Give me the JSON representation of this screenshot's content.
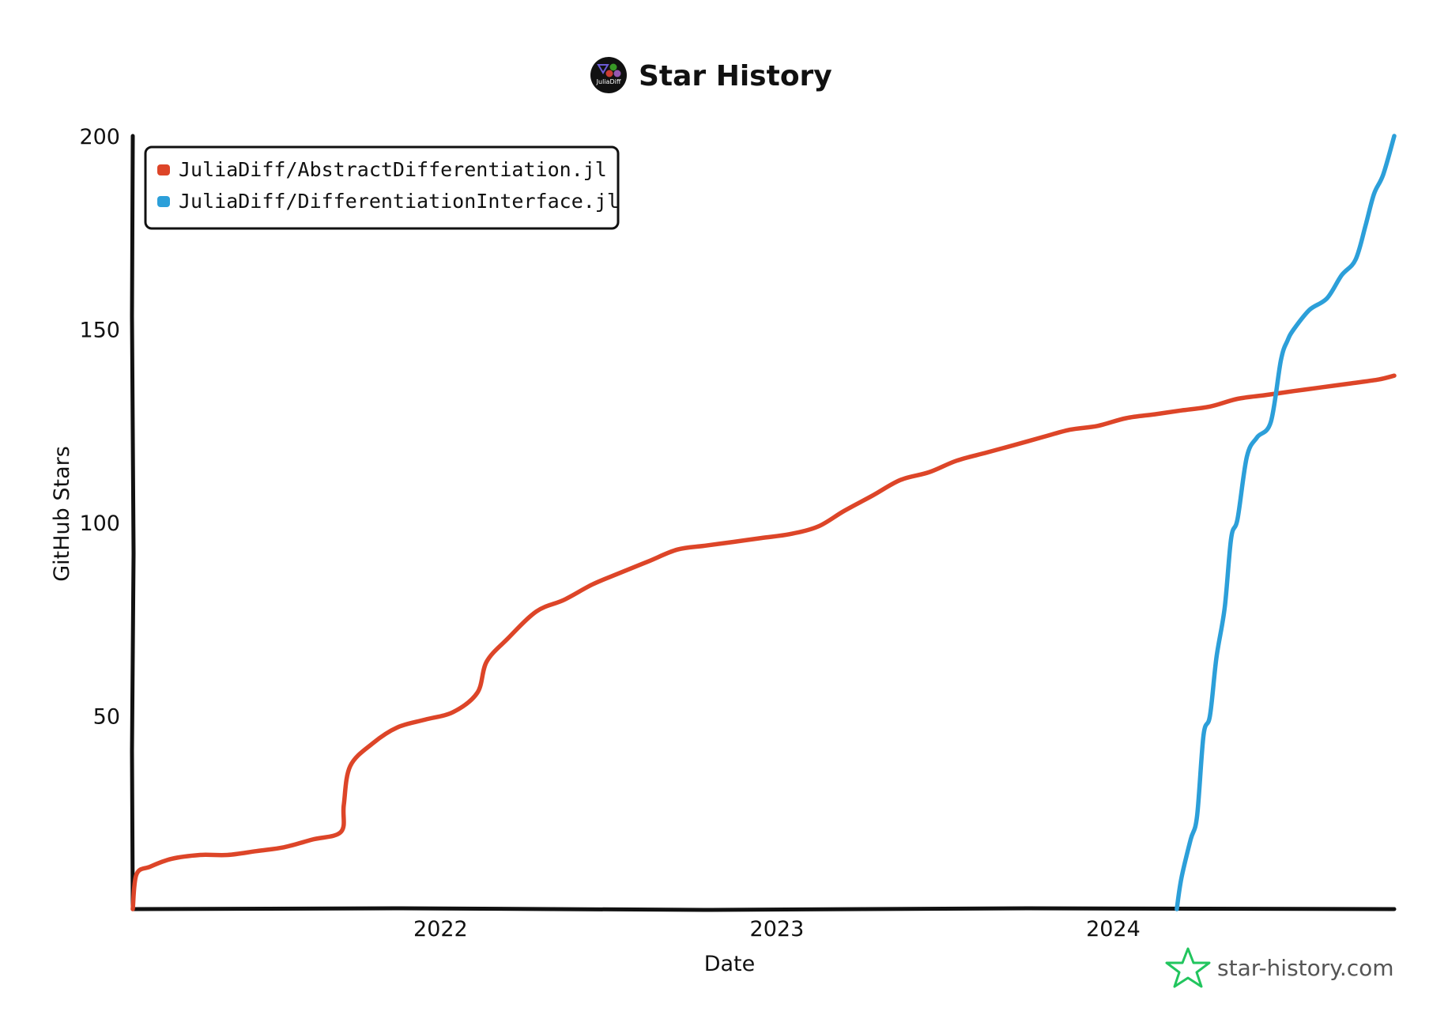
{
  "header": {
    "title": "Star History",
    "logo_label": "JuliaDiff"
  },
  "watermark": {
    "text": "star-history.com",
    "color": "#22c55e"
  },
  "chart_data": {
    "type": "line",
    "title": "Star History",
    "xlabel": "Date",
    "ylabel": "GitHub Stars",
    "xlim": [
      "2021-02-01",
      "2024-11-01"
    ],
    "ylim": [
      0,
      200
    ],
    "y_ticks": [
      50,
      100,
      150,
      200
    ],
    "x_ticks": [
      {
        "label": "2022",
        "date": "2022-01-01"
      },
      {
        "label": "2023",
        "date": "2023-01-01"
      },
      {
        "label": "2024",
        "date": "2024-01-01"
      }
    ],
    "legend_position": "top-left",
    "grid": false,
    "series": [
      {
        "name": "JuliaDiff/AbstractDifferentiation.jl",
        "color": "#dd4528",
        "x": [
          "2021-02-01",
          "2021-02-05",
          "2021-02-20",
          "2021-03-15",
          "2021-04-15",
          "2021-05-15",
          "2021-06-15",
          "2021-07-15",
          "2021-08-15",
          "2021-09-15",
          "2021-09-18",
          "2021-09-25",
          "2021-10-20",
          "2021-11-15",
          "2021-12-15",
          "2022-01-15",
          "2022-02-10",
          "2022-02-20",
          "2022-03-15",
          "2022-04-15",
          "2022-05-15",
          "2022-06-15",
          "2022-07-15",
          "2022-08-15",
          "2022-09-15",
          "2022-10-15",
          "2022-11-15",
          "2022-12-15",
          "2023-01-15",
          "2023-02-15",
          "2023-03-15",
          "2023-04-15",
          "2023-05-15",
          "2023-06-15",
          "2023-07-15",
          "2023-08-15",
          "2023-09-15",
          "2023-10-15",
          "2023-11-15",
          "2023-12-15",
          "2024-01-15",
          "2024-02-15",
          "2024-03-15",
          "2024-04-15",
          "2024-05-15",
          "2024-06-15",
          "2024-07-15",
          "2024-08-15",
          "2024-09-15",
          "2024-10-15",
          "2024-11-01"
        ],
        "values": [
          0,
          9,
          11,
          13,
          14,
          14,
          15,
          16,
          18,
          20,
          27,
          37,
          43,
          47,
          49,
          51,
          56,
          64,
          70,
          77,
          80,
          84,
          87,
          90,
          93,
          94,
          95,
          96,
          97,
          99,
          103,
          107,
          111,
          113,
          116,
          118,
          120,
          122,
          124,
          125,
          127,
          128,
          129,
          130,
          132,
          133,
          134,
          135,
          136,
          137,
          138
        ]
      },
      {
        "name": "JuliaDiff/DifferentiationInterface.jl",
        "color": "#2c9fd9",
        "x": [
          "2024-03-10",
          "2024-03-15",
          "2024-03-25",
          "2024-04-01",
          "2024-04-08",
          "2024-04-15",
          "2024-04-22",
          "2024-05-01",
          "2024-05-08",
          "2024-05-15",
          "2024-05-25",
          "2024-06-05",
          "2024-06-20",
          "2024-07-01",
          "2024-07-08",
          "2024-07-15",
          "2024-08-01",
          "2024-08-20",
          "2024-09-05",
          "2024-09-20",
          "2024-10-01",
          "2024-10-10",
          "2024-10-20",
          "2024-11-01"
        ],
        "values": [
          0,
          8,
          18,
          24,
          45,
          50,
          65,
          78,
          96,
          101,
          117,
          122,
          126,
          142,
          147,
          150,
          155,
          158,
          164,
          168,
          177,
          185,
          190,
          200
        ]
      }
    ]
  }
}
